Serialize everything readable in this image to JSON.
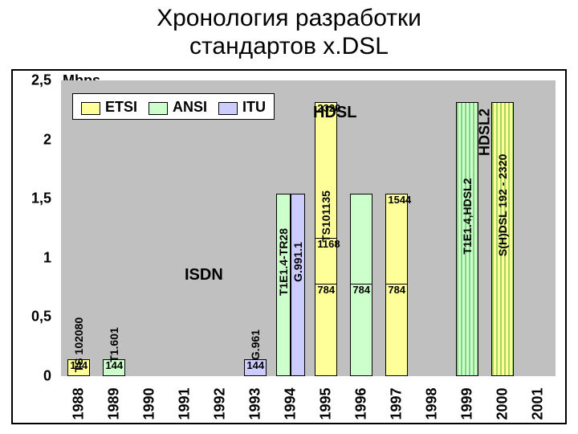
{
  "title_line1": "Хронология разработки",
  "title_line2": "стандартов x.DSL",
  "chart": {
    "type": "bar-timeline",
    "background_color": "#c0c0c0",
    "frame_color": "#000000",
    "y_unit_label": "Mbps",
    "ylim": [
      0,
      2.5
    ],
    "ytick_step": 0.5,
    "yticks": [
      "0",
      "0,5",
      "1",
      "1,5",
      "2",
      "2,5"
    ],
    "years": [
      "1988",
      "1989",
      "1990",
      "1991",
      "1992",
      "1993",
      "1994",
      "1995",
      "1996",
      "1997",
      "1998",
      "1999",
      "2000",
      "2001"
    ],
    "x_label_fontsize": 18,
    "series_colors": {
      "ETSI": "#ffff99",
      "ANSI": "#ccffcc",
      "ITU": "#ccccff"
    },
    "legend": {
      "items": [
        "ETSI",
        "ANSI",
        "ITU"
      ],
      "position": "top-left-inside"
    },
    "bars": [
      {
        "year": 1988,
        "series": "ETSI",
        "value": 144,
        "label": "144",
        "side_text": "TS 102080"
      },
      {
        "year": 1989,
        "series": "ANSI",
        "value": 144,
        "label": "144",
        "side_text": "T1.601"
      },
      {
        "year": 1993,
        "series": "ITU",
        "value": 144,
        "label": "144",
        "side_text": "G.961"
      },
      {
        "year": 1994,
        "series": "ANSI",
        "value": 1544,
        "label": "",
        "side_text": "T1E1.4-TR28"
      },
      {
        "year": 1994,
        "series": "ITU",
        "value": 1544,
        "label": "",
        "side_text": "G.991.1"
      },
      {
        "year": 1995,
        "series": "ETSI",
        "value": 2320,
        "label": "2320",
        "side_text": "TS101135",
        "z": 5
      },
      {
        "year": 1995,
        "series": "ETSI",
        "value": 1168,
        "label": "1168",
        "z": 6
      },
      {
        "year": 1995,
        "series": "ETSI",
        "value": 784,
        "label": "784",
        "z": 7
      },
      {
        "year": 1996,
        "series": "ANSI",
        "value": 1544,
        "label": "",
        "z": 5
      },
      {
        "year": 1996,
        "series": "ANSI",
        "value": 784,
        "label": "784",
        "z": 7
      },
      {
        "year": 1997,
        "series": "ETSI",
        "value": 1544,
        "label": "1544",
        "z": 5
      },
      {
        "year": 1997,
        "series": "ETSI",
        "value": 784,
        "label": "784",
        "z": 7
      },
      {
        "year": 1999,
        "series": "ANSI",
        "value": 2320,
        "label": "",
        "side_text": "T1E1.4,HDSL2",
        "hatched": true
      },
      {
        "year": 2000,
        "series": "ETSI",
        "value": 2320,
        "label": "",
        "side_text": "S(H)DSL 192 - 2320",
        "hatched": true
      }
    ],
    "annotations": [
      {
        "text": "ISDN",
        "x_year": 1991,
        "y_value": 0.85,
        "fontsize": 20
      },
      {
        "text": "HDSL",
        "x_year": 1994,
        "y_value": 2.22,
        "fontsize": 20,
        "dx": 28
      },
      {
        "text": "HDSL2",
        "x_year": 1999,
        "y_value": 2.05,
        "fontsize": 18,
        "rotated": true,
        "dx": 22
      }
    ]
  }
}
